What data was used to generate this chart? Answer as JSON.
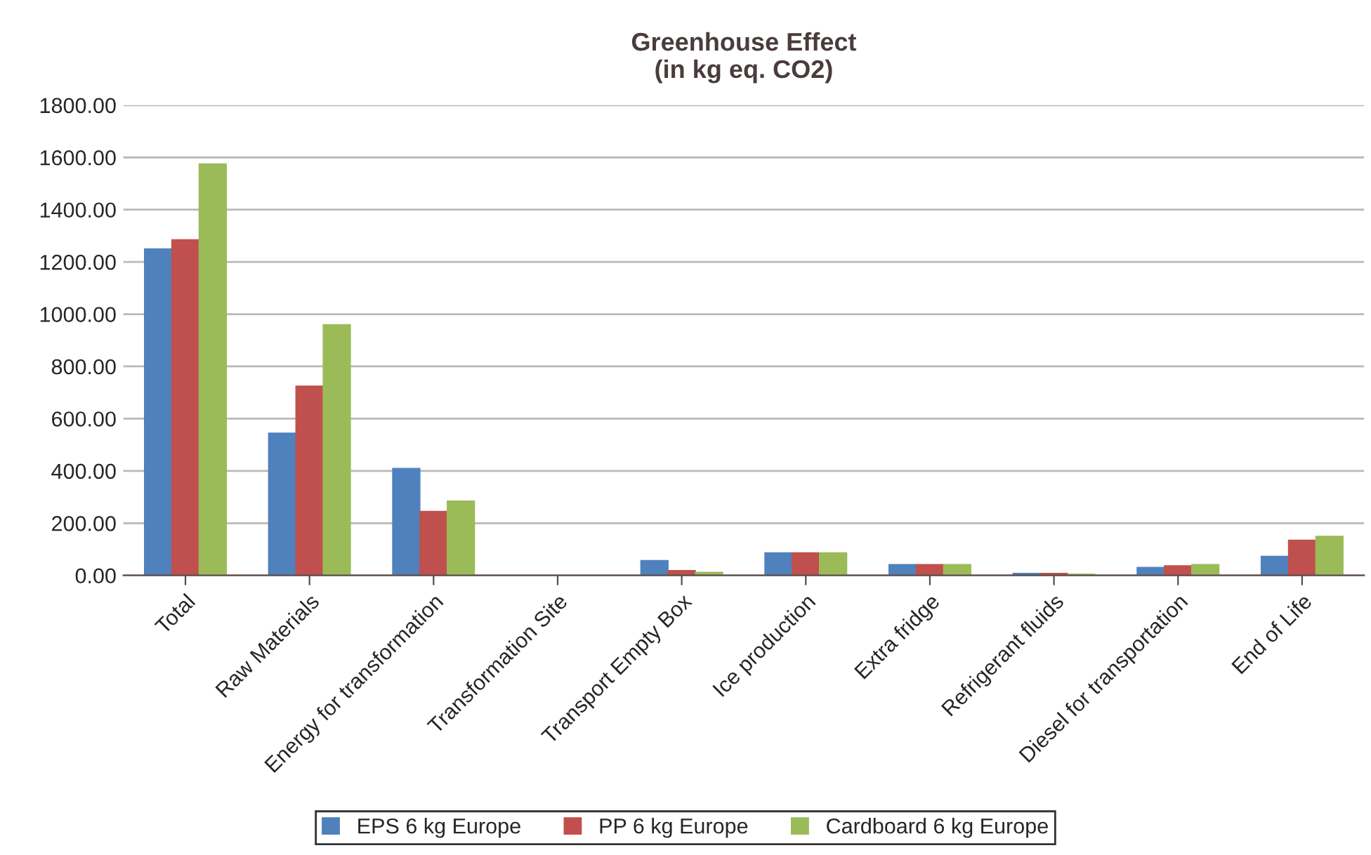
{
  "chart_data": {
    "type": "bar",
    "title": "Greenhouse Effect\n(in kg eq. CO2)",
    "categories": [
      "Total",
      "Raw Materials",
      "Energy for transformation",
      "Transformation Site",
      "Transport Empty Box",
      "Ice production",
      "Extra fridge",
      "Refrigerant fluids",
      "Diesel for transportation",
      "End of Life"
    ],
    "series": [
      {
        "name": "EPS 6 kg Europe",
        "color": "#4f81bd",
        "values": [
          1250,
          545,
          410,
          0,
          57,
          87,
          42,
          8,
          31,
          73
        ]
      },
      {
        "name": "PP 6 kg Europe",
        "color": "#c0504d",
        "values": [
          1285,
          725,
          245,
          0,
          19,
          87,
          42,
          8,
          37,
          135
        ]
      },
      {
        "name": "Cardboard 6 kg Europe",
        "color": "#9bbb59",
        "values": [
          1575,
          960,
          285,
          0,
          12,
          87,
          42,
          5,
          42,
          150
        ]
      }
    ],
    "ylim": [
      0,
      1800
    ],
    "yticks": [
      {
        "value": 0,
        "label": "0.00"
      },
      {
        "value": 200,
        "label": "200.00"
      },
      {
        "value": 400,
        "label": "400.00"
      },
      {
        "value": 600,
        "label": "600.00"
      },
      {
        "value": 800,
        "label": "800.00"
      },
      {
        "value": 1000,
        "label": "1000.00"
      },
      {
        "value": 1200,
        "label": "1200.00"
      },
      {
        "value": 1400,
        "label": "1400.00"
      },
      {
        "value": 1600,
        "label": "1600.00"
      },
      {
        "value": 1800,
        "label": "1800.00"
      }
    ],
    "grid": "y",
    "legend": "bottom"
  }
}
